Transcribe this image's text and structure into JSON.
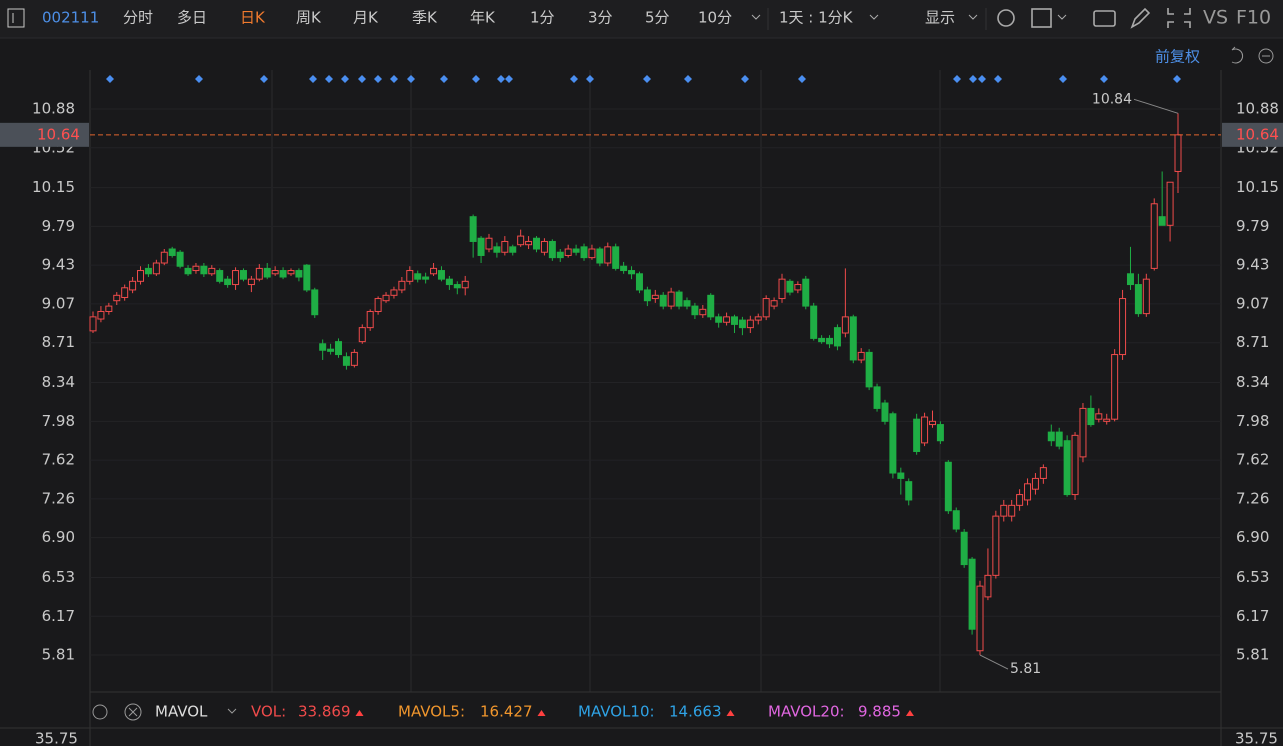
{
  "toolbar": {
    "code": "002111",
    "tabs": [
      "分时",
      "多日",
      "日K",
      "周K",
      "月K",
      "季K",
      "年K",
      "1分",
      "3分",
      "5分",
      "10分"
    ],
    "active_tab": 2,
    "period": "1天 : 1分K",
    "display": "显示",
    "vs": "VS",
    "f10": "F10"
  },
  "chart_data": {
    "type": "candlestick",
    "adjust_label": "前复权",
    "up_color": "#f04b4b",
    "down_color": "#1fae45",
    "ylim": [
      5.467,
      11.242
    ],
    "yticks": [
      10.88,
      10.52,
      10.15,
      9.79,
      9.43,
      9.07,
      8.71,
      8.34,
      7.98,
      7.62,
      7.26,
      {
        "value": 6.9,
        "label": "6.90"
      },
      6.53,
      6.17,
      5.81
    ],
    "current_price": 10.64,
    "high_label": 10.84,
    "low_label": 5.81,
    "ohlc": [
      [
        8.82,
        9.0,
        8.8,
        8.95
      ],
      [
        8.93,
        9.05,
        8.9,
        9.0
      ],
      [
        9.0,
        9.08,
        8.97,
        9.05
      ],
      [
        9.1,
        9.18,
        9.06,
        9.15
      ],
      [
        9.13,
        9.25,
        9.1,
        9.22
      ],
      [
        9.2,
        9.32,
        9.17,
        9.28
      ],
      [
        9.28,
        9.42,
        9.25,
        9.38
      ],
      [
        9.4,
        9.44,
        9.32,
        9.35
      ],
      [
        9.35,
        9.48,
        9.33,
        9.45
      ],
      [
        9.45,
        9.58,
        9.43,
        9.55
      ],
      [
        9.58,
        9.6,
        9.5,
        9.52
      ],
      [
        9.55,
        9.57,
        9.4,
        9.42
      ],
      [
        9.4,
        9.43,
        9.33,
        9.35
      ],
      [
        9.38,
        9.45,
        9.35,
        9.42
      ],
      [
        9.42,
        9.45,
        9.32,
        9.35
      ],
      [
        9.35,
        9.43,
        9.33,
        9.4
      ],
      [
        9.38,
        9.4,
        9.26,
        9.28
      ],
      [
        9.3,
        9.33,
        9.22,
        9.25
      ],
      [
        9.25,
        9.41,
        9.2,
        9.38
      ],
      [
        9.38,
        9.4,
        9.28,
        9.3
      ],
      [
        9.25,
        9.33,
        9.18,
        9.3
      ],
      [
        9.3,
        9.44,
        9.28,
        9.4
      ],
      [
        9.4,
        9.45,
        9.3,
        9.32
      ],
      [
        9.35,
        9.42,
        9.33,
        9.38
      ],
      [
        9.38,
        9.41,
        9.3,
        9.32
      ],
      [
        9.35,
        9.4,
        9.33,
        9.38
      ],
      [
        9.38,
        9.4,
        9.28,
        9.32
      ],
      [
        9.43,
        9.44,
        9.18,
        9.2
      ],
      [
        9.2,
        9.22,
        8.94,
        8.97
      ],
      [
        8.7,
        8.74,
        8.55,
        8.64
      ],
      [
        8.65,
        8.7,
        8.6,
        8.63
      ],
      [
        8.72,
        8.75,
        8.57,
        8.6
      ],
      [
        8.58,
        8.62,
        8.46,
        8.5
      ],
      [
        8.5,
        8.65,
        8.48,
        8.62
      ],
      [
        8.72,
        8.88,
        8.7,
        8.85
      ],
      [
        8.85,
        9.02,
        8.82,
        9.0
      ],
      [
        9.0,
        9.14,
        8.97,
        9.12
      ],
      [
        9.1,
        9.18,
        9.08,
        9.15
      ],
      [
        9.15,
        9.23,
        9.12,
        9.2
      ],
      [
        9.2,
        9.32,
        9.17,
        9.28
      ],
      [
        9.28,
        9.42,
        9.25,
        9.38
      ],
      [
        9.35,
        9.38,
        9.27,
        9.3
      ],
      [
        9.32,
        9.36,
        9.26,
        9.3
      ],
      [
        9.35,
        9.45,
        9.33,
        9.4
      ],
      [
        9.38,
        9.42,
        9.28,
        9.3
      ],
      [
        9.3,
        9.33,
        9.2,
        9.25
      ],
      [
        9.25,
        9.28,
        9.16,
        9.22
      ],
      [
        9.22,
        9.33,
        9.15,
        9.28
      ],
      [
        9.88,
        9.9,
        9.5,
        9.65
      ],
      [
        9.68,
        9.7,
        9.45,
        9.52
      ],
      [
        9.58,
        9.72,
        9.55,
        9.68
      ],
      [
        9.6,
        9.64,
        9.5,
        9.55
      ],
      [
        9.55,
        9.7,
        9.52,
        9.65
      ],
      [
        9.6,
        9.62,
        9.52,
        9.55
      ],
      [
        9.62,
        9.76,
        9.6,
        9.7
      ],
      [
        9.62,
        9.7,
        9.58,
        9.65
      ],
      [
        9.68,
        9.7,
        9.55,
        9.58
      ],
      [
        9.55,
        9.68,
        9.52,
        9.65
      ],
      [
        9.65,
        9.67,
        9.47,
        9.5
      ],
      [
        9.55,
        9.58,
        9.46,
        9.5
      ],
      [
        9.52,
        9.62,
        9.5,
        9.58
      ],
      [
        9.58,
        9.62,
        9.52,
        9.55
      ],
      [
        9.6,
        9.63,
        9.47,
        9.5
      ],
      [
        9.5,
        9.62,
        9.48,
        9.58
      ],
      [
        9.58,
        9.6,
        9.42,
        9.45
      ],
      [
        9.45,
        9.64,
        9.42,
        9.6
      ],
      [
        9.6,
        9.63,
        9.38,
        9.4
      ],
      [
        9.42,
        9.46,
        9.35,
        9.38
      ],
      [
        9.38,
        9.42,
        9.3,
        9.35
      ],
      [
        9.35,
        9.37,
        9.17,
        9.2
      ],
      [
        9.2,
        9.23,
        9.05,
        9.1
      ],
      [
        9.12,
        9.2,
        9.08,
        9.15
      ],
      [
        9.15,
        9.18,
        9.02,
        9.05
      ],
      [
        9.05,
        9.22,
        9.02,
        9.18
      ],
      [
        9.18,
        9.2,
        9.02,
        9.05
      ],
      [
        9.1,
        9.13,
        9.02,
        9.05
      ],
      [
        9.05,
        9.08,
        8.93,
        8.97
      ],
      [
        8.97,
        9.06,
        8.94,
        9.02
      ],
      [
        9.15,
        9.17,
        8.92,
        8.95
      ],
      [
        8.95,
        8.98,
        8.85,
        8.9
      ],
      [
        8.9,
        8.99,
        8.87,
        8.95
      ],
      [
        8.95,
        8.97,
        8.8,
        8.88
      ],
      [
        8.92,
        8.95,
        8.78,
        8.85
      ],
      [
        8.85,
        8.96,
        8.8,
        8.92
      ],
      [
        8.92,
        8.98,
        8.88,
        8.95
      ],
      [
        8.95,
        9.15,
        8.92,
        9.12
      ],
      [
        9.05,
        9.13,
        9.02,
        9.1
      ],
      [
        9.12,
        9.35,
        9.08,
        9.3
      ],
      [
        9.28,
        9.3,
        9.15,
        9.18
      ],
      [
        9.2,
        9.28,
        9.17,
        9.25
      ],
      [
        9.3,
        9.33,
        9.02,
        9.05
      ],
      [
        9.05,
        9.08,
        8.73,
        8.75
      ],
      [
        8.75,
        8.78,
        8.7,
        8.72
      ],
      [
        8.75,
        8.78,
        8.66,
        8.7
      ],
      [
        8.85,
        8.88,
        8.64,
        8.68
      ],
      [
        8.8,
        9.4,
        8.76,
        8.95
      ],
      [
        8.95,
        8.97,
        8.52,
        8.55
      ],
      [
        8.55,
        8.66,
        8.52,
        8.62
      ],
      [
        8.62,
        8.65,
        8.27,
        8.3
      ],
      [
        8.3,
        8.33,
        8.07,
        8.1
      ],
      [
        8.15,
        8.18,
        7.95,
        7.98
      ],
      [
        8.05,
        8.07,
        7.45,
        7.5
      ],
      [
        7.5,
        7.55,
        7.3,
        7.45
      ],
      [
        7.42,
        7.45,
        7.2,
        7.25
      ],
      [
        8.0,
        8.05,
        7.67,
        7.7
      ],
      [
        7.78,
        8.06,
        7.75,
        8.02
      ],
      [
        7.95,
        8.08,
        7.92,
        7.98
      ],
      [
        7.95,
        7.98,
        7.77,
        7.8
      ],
      [
        7.6,
        7.62,
        7.12,
        7.15
      ],
      [
        7.15,
        7.18,
        6.95,
        6.98
      ],
      [
        6.95,
        6.98,
        6.62,
        6.65
      ],
      [
        6.7,
        6.72,
        6.0,
        6.05
      ],
      [
        5.85,
        6.5,
        5.81,
        6.45
      ],
      [
        6.35,
        6.8,
        6.32,
        6.55
      ],
      [
        6.55,
        7.15,
        6.52,
        7.1
      ],
      [
        7.1,
        7.25,
        7.05,
        7.2
      ],
      [
        7.1,
        7.25,
        7.05,
        7.2
      ],
      [
        7.2,
        7.35,
        7.15,
        7.3
      ],
      [
        7.25,
        7.45,
        7.2,
        7.4
      ],
      [
        7.35,
        7.5,
        7.3,
        7.45
      ],
      [
        7.45,
        7.58,
        7.4,
        7.55
      ],
      [
        7.88,
        7.95,
        7.75,
        7.8
      ],
      [
        7.88,
        7.92,
        7.72,
        7.75
      ],
      [
        7.8,
        7.85,
        7.28,
        7.3
      ],
      [
        7.3,
        7.88,
        7.25,
        7.85
      ],
      [
        7.65,
        8.15,
        7.6,
        8.1
      ],
      [
        8.1,
        8.22,
        7.93,
        7.95
      ],
      [
        8.0,
        8.1,
        7.97,
        8.05
      ],
      [
        7.98,
        8.05,
        7.95,
        8.0
      ],
      [
        8.0,
        8.65,
        7.98,
        8.6
      ],
      [
        8.6,
        9.2,
        8.55,
        9.12
      ],
      [
        9.35,
        9.6,
        9.2,
        9.25
      ],
      [
        9.25,
        9.35,
        8.95,
        8.98
      ],
      [
        8.98,
        9.35,
        8.95,
        9.3
      ],
      [
        9.4,
        10.05,
        9.38,
        10.0
      ],
      [
        9.88,
        10.3,
        9.8,
        9.8
      ],
      [
        9.8,
        10.2,
        9.65,
        10.2
      ],
      [
        10.3,
        10.84,
        10.1,
        10.64
      ]
    ]
  },
  "indicator": {
    "name": "MAVOL",
    "items": [
      {
        "name": "VOL:",
        "value": 33.869,
        "color": "#f04b4b"
      },
      {
        "name": "MAVOL5:",
        "value": 16.427,
        "color": "#f0962d"
      },
      {
        "name": "MAVOL10:",
        "value": 14.663,
        "color": "#2fa3e6"
      },
      {
        "name": "MAVOL20:",
        "value": 9.885,
        "color": "#e066e0"
      }
    ],
    "axis_label": 35.75
  }
}
